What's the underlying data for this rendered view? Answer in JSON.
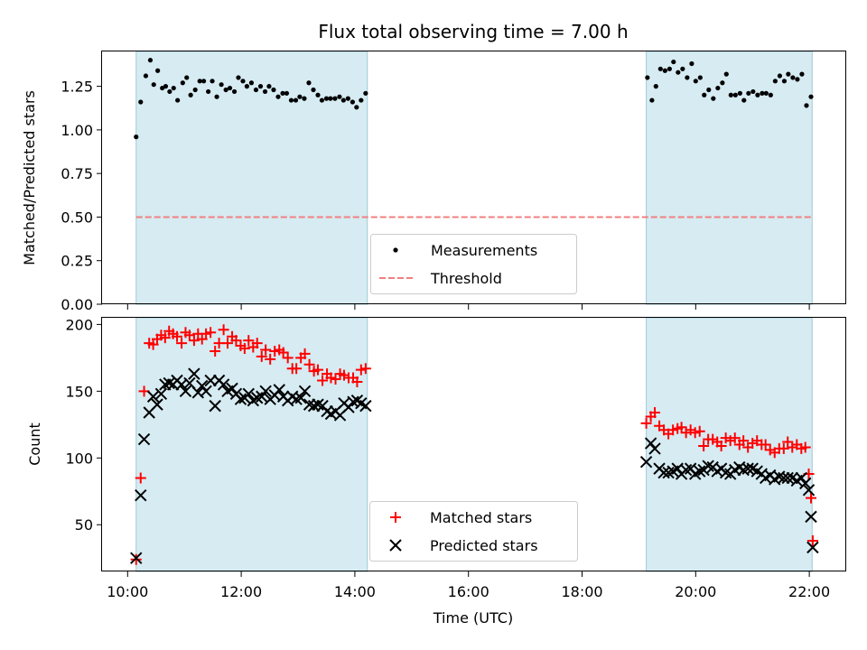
{
  "chart_data": {
    "title": "Flux total observing time = 7.00 h",
    "xlabel": "Time (UTC)",
    "xlim": [
      9.55,
      22.65
    ],
    "xticks": [
      "10:00",
      "12:00",
      "14:00",
      "16:00",
      "18:00",
      "20:00",
      "22:00"
    ],
    "xtick_values": [
      10,
      12,
      14,
      16,
      18,
      20,
      22
    ],
    "observing_windows": [
      [
        10.15,
        14.22
      ],
      [
        19.13,
        22.05
      ]
    ],
    "top": {
      "type": "scatter",
      "ylabel": "Matched/Predicted stars",
      "ylim": [
        0,
        1.45
      ],
      "yticks": [
        "0.00",
        "0.25",
        "0.50",
        "0.75",
        "1.00",
        "1.25"
      ],
      "ytick_values": [
        0,
        0.25,
        0.5,
        0.75,
        1.0,
        1.25
      ],
      "threshold": 0.5,
      "threshold_color": "#f08080",
      "legend": [
        "Measurements",
        "Threshold"
      ],
      "legend_position": "lower-center",
      "measurements": {
        "x": [
          10.15,
          10.23,
          10.32,
          10.4,
          10.46,
          10.53,
          10.61,
          10.67,
          10.74,
          10.81,
          10.88,
          10.97,
          11.04,
          11.11,
          11.19,
          11.27,
          11.34,
          11.42,
          11.49,
          11.57,
          11.65,
          11.73,
          11.8,
          11.88,
          11.95,
          12.03,
          12.1,
          12.18,
          12.26,
          12.34,
          12.42,
          12.49,
          12.57,
          12.65,
          12.73,
          12.8,
          12.88,
          12.96,
          13.03,
          13.11,
          13.19,
          13.27,
          13.35,
          13.42,
          13.5,
          13.57,
          13.65,
          13.73,
          13.8,
          13.88,
          13.96,
          14.03,
          14.11,
          14.19,
          19.15,
          19.23,
          19.3,
          19.38,
          19.46,
          19.54,
          19.61,
          19.69,
          19.77,
          19.85,
          19.93,
          20.0,
          20.08,
          20.15,
          20.23,
          20.31,
          20.39,
          20.47,
          20.54,
          20.62,
          20.7,
          20.78,
          20.85,
          20.93,
          21.01,
          21.09,
          21.17,
          21.24,
          21.32,
          21.4,
          21.48,
          21.56,
          21.63,
          21.71,
          21.79,
          21.87,
          21.95,
          22.03
        ],
        "y": [
          0.96,
          1.16,
          1.31,
          1.4,
          1.26,
          1.34,
          1.24,
          1.25,
          1.22,
          1.24,
          1.17,
          1.27,
          1.3,
          1.2,
          1.23,
          1.28,
          1.28,
          1.22,
          1.28,
          1.19,
          1.26,
          1.23,
          1.24,
          1.22,
          1.3,
          1.28,
          1.25,
          1.27,
          1.23,
          1.25,
          1.22,
          1.25,
          1.23,
          1.19,
          1.21,
          1.21,
          1.17,
          1.17,
          1.19,
          1.18,
          1.27,
          1.23,
          1.2,
          1.17,
          1.18,
          1.18,
          1.18,
          1.19,
          1.17,
          1.18,
          1.16,
          1.13,
          1.17,
          1.21,
          1.3,
          1.17,
          1.25,
          1.35,
          1.34,
          1.35,
          1.39,
          1.33,
          1.35,
          1.3,
          1.38,
          1.28,
          1.3,
          1.2,
          1.23,
          1.18,
          1.24,
          1.27,
          1.32,
          1.2,
          1.2,
          1.21,
          1.17,
          1.21,
          1.22,
          1.2,
          1.21,
          1.21,
          1.2,
          1.28,
          1.31,
          1.28,
          1.32,
          1.3,
          1.29,
          1.32,
          1.14,
          1.19
        ]
      }
    },
    "bottom": {
      "type": "scatter",
      "ylabel": "Count",
      "ylim": [
        15,
        205
      ],
      "yticks": [
        "50",
        "100",
        "150",
        "200"
      ],
      "ytick_values": [
        50,
        100,
        150,
        200
      ],
      "legend": [
        "Matched stars",
        "Predicted stars"
      ],
      "legend_position": "lower-center",
      "matched_color": "#ff0000",
      "predicted_color": "#000000",
      "x": [
        10.15,
        10.23,
        10.29,
        10.38,
        10.45,
        10.52,
        10.59,
        10.66,
        10.73,
        10.8,
        10.87,
        10.95,
        11.02,
        11.09,
        11.17,
        11.24,
        11.31,
        11.38,
        11.46,
        11.54,
        11.61,
        11.69,
        11.76,
        11.84,
        11.91,
        11.99,
        12.06,
        12.13,
        12.21,
        12.28,
        12.36,
        12.43,
        12.51,
        12.59,
        12.67,
        12.74,
        12.82,
        12.9,
        12.97,
        13.05,
        13.12,
        13.2,
        13.28,
        13.35,
        13.43,
        13.51,
        13.58,
        13.66,
        13.74,
        13.81,
        13.89,
        13.97,
        14.04,
        14.11,
        14.19,
        19.13,
        19.21,
        19.28,
        19.36,
        19.44,
        19.52,
        19.6,
        19.68,
        19.75,
        19.83,
        19.91,
        19.99,
        20.07,
        20.14,
        20.22,
        20.3,
        20.38,
        20.45,
        20.53,
        20.61,
        20.69,
        20.77,
        20.84,
        20.92,
        21.0,
        21.08,
        21.16,
        21.23,
        21.31,
        21.39,
        21.47,
        21.55,
        21.62,
        21.7,
        21.78,
        21.86,
        21.93,
        21.99,
        22.03,
        22.06
      ],
      "matched": [
        24,
        85,
        150,
        186,
        185,
        189,
        192,
        190,
        195,
        193,
        191,
        186,
        194,
        192,
        188,
        193,
        189,
        193,
        194,
        180,
        186,
        196,
        186,
        191,
        188,
        184,
        182,
        188,
        183,
        186,
        176,
        181,
        174,
        180,
        181,
        179,
        175,
        167,
        167,
        175,
        178,
        170,
        165,
        166,
        158,
        163,
        160,
        159,
        163,
        162,
        160,
        160,
        157,
        166,
        167,
        126,
        131,
        134,
        124,
        121,
        118,
        121,
        122,
        123,
        119,
        121,
        119,
        120,
        109,
        114,
        114,
        112,
        109,
        115,
        113,
        115,
        110,
        113,
        108,
        111,
        113,
        110,
        110,
        106,
        104,
        107,
        107,
        112,
        108,
        110,
        107,
        108,
        88,
        70,
        38
      ],
      "predicted": [
        25,
        72,
        114,
        134,
        146,
        140,
        148,
        155,
        156,
        155,
        158,
        155,
        150,
        156,
        163,
        149,
        154,
        150,
        158,
        139,
        158,
        155,
        150,
        152,
        148,
        144,
        145,
        148,
        143,
        145,
        146,
        150,
        144,
        147,
        151,
        146,
        143,
        146,
        144,
        145,
        150,
        140,
        139,
        140,
        139,
        135,
        133,
        135,
        132,
        141,
        138,
        142,
        143,
        141,
        139,
        97,
        111,
        107,
        92,
        89,
        89,
        90,
        92,
        88,
        91,
        92,
        88,
        90,
        91,
        94,
        93,
        90,
        92,
        89,
        88,
        91,
        93,
        91,
        92,
        92,
        90,
        88,
        85,
        87,
        84,
        86,
        85,
        85,
        85,
        83,
        85,
        81,
        76,
        56,
        33
      ]
    }
  }
}
